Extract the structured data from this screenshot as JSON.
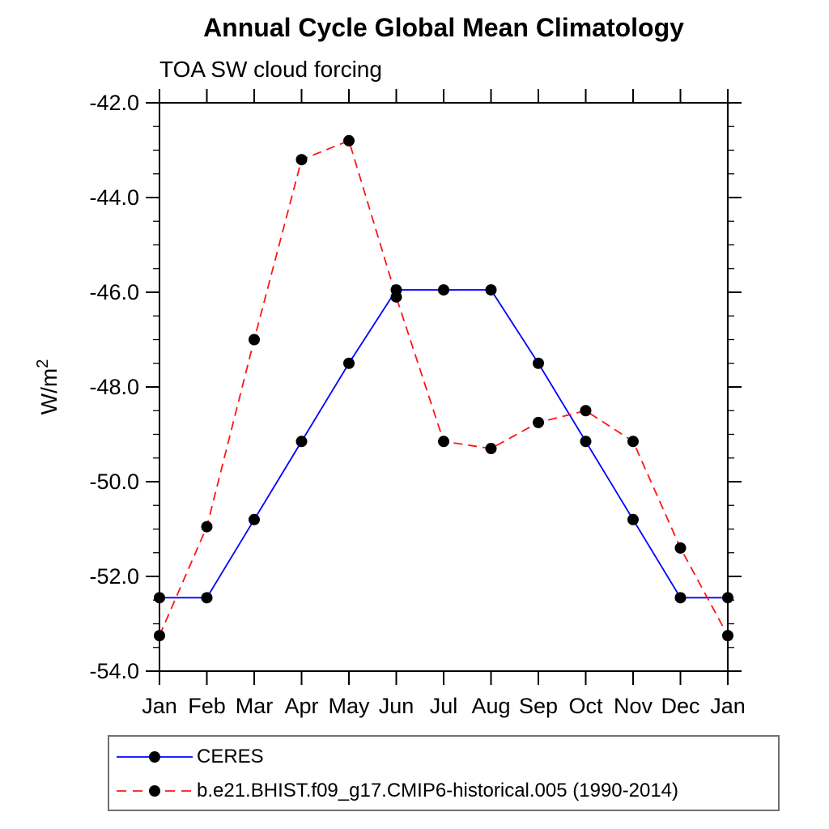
{
  "chart_data": {
    "type": "line",
    "title": "Annual Cycle Global Mean Climatology",
    "subtitle": "TOA SW cloud forcing",
    "ylabel_main": "W/m",
    "ylabel_sup": "2",
    "categories": [
      "Jan",
      "Feb",
      "Mar",
      "Apr",
      "May",
      "Jun",
      "Jul",
      "Aug",
      "Sep",
      "Oct",
      "Nov",
      "Dec",
      "Jan"
    ],
    "ylim": [
      -54.0,
      -42.0
    ],
    "ytick_major_step": 2.0,
    "ytick_minor_step": 0.5,
    "ytick_labels": [
      "-42.0",
      "-44.0",
      "-46.0",
      "-48.0",
      "-50.0",
      "-52.0",
      "-54.0"
    ],
    "grid": false,
    "legend_position": "bottom-left-box",
    "axis_color": "#000000",
    "marker_color": "#000000",
    "series": [
      {
        "name": "CERES",
        "color": "#0000ff",
        "line_style": "solid",
        "marker": "filled-circle",
        "values": [
          -52.45,
          -52.45,
          -50.8,
          -49.15,
          -47.5,
          -45.95,
          -45.95,
          -45.95,
          -47.5,
          -49.15,
          -50.8,
          -52.45,
          -52.45
        ]
      },
      {
        "name": "b.e21.BHIST.f09_g17.CMIP6-historical.005 (1990-2014)",
        "color": "#ff1414",
        "line_style": "dashed",
        "marker": "filled-circle",
        "values": [
          -53.25,
          -50.95,
          -47.0,
          -43.2,
          -42.8,
          -46.1,
          -49.15,
          -49.3,
          -48.75,
          -48.5,
          -49.15,
          -51.4,
          -53.25
        ]
      }
    ]
  }
}
